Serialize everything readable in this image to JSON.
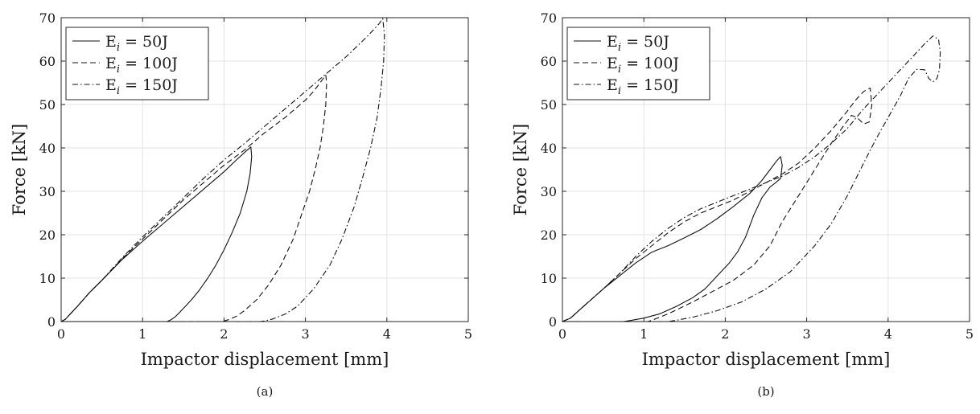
{
  "chart_data": [
    {
      "type": "line",
      "caption": "(a)",
      "xlabel": "Impactor displacement [mm]",
      "ylabel": "Force [kN]",
      "xlim": [
        0,
        5
      ],
      "ylim": [
        0,
        70
      ],
      "xticks": [
        0,
        1,
        2,
        3,
        4,
        5
      ],
      "yticks": [
        0,
        10,
        20,
        30,
        40,
        50,
        60,
        70
      ],
      "grid": true,
      "legend_position": "top-left",
      "series": [
        {
          "name": "E_i = 50J",
          "label_main": "E",
          "label_sub": "i",
          "label_rest": " = 50J",
          "dash": "solid",
          "x": [
            0,
            0.05,
            0.1,
            0.2,
            0.35,
            0.5,
            0.75,
            1.0,
            1.25,
            1.5,
            1.75,
            2.0,
            2.15,
            2.28,
            2.33,
            2.34,
            2.32,
            2.28,
            2.2,
            2.1,
            2.0,
            1.9,
            1.8,
            1.7,
            1.6,
            1.5,
            1.45,
            1.4,
            1.35,
            1.3,
            1.0,
            0.5,
            0
          ],
          "y": [
            0,
            0.5,
            1.5,
            3.5,
            6.7,
            9.5,
            14.3,
            18.5,
            22.5,
            26.5,
            30.5,
            34.5,
            37.2,
            39.4,
            40.2,
            38,
            34,
            30,
            25,
            20.5,
            16.5,
            13,
            10,
            7.3,
            5,
            3,
            2,
            1.1,
            0.4,
            0,
            0,
            0,
            0
          ]
        },
        {
          "name": "E_i = 100J",
          "label_main": "E",
          "label_sub": "i",
          "label_rest": " = 100J",
          "dash": "dashed",
          "x": [
            0,
            0.05,
            0.1,
            0.2,
            0.35,
            0.5,
            0.75,
            1.0,
            1.25,
            1.5,
            1.75,
            2.0,
            2.25,
            2.5,
            2.75,
            3.0,
            3.1,
            3.2,
            3.25,
            3.26,
            3.25,
            3.22,
            3.18,
            3.12,
            3.05,
            2.95,
            2.85,
            2.7,
            2.55,
            2.4,
            2.25,
            2.15,
            2.05,
            1.98,
            1.0,
            0.5,
            0
          ],
          "y": [
            0,
            0.5,
            1.5,
            3.5,
            6.7,
            9.5,
            14.5,
            19,
            23.5,
            28,
            32,
            36,
            39.5,
            43.5,
            47,
            51,
            53,
            55.5,
            56.8,
            55,
            50,
            45,
            40,
            35,
            30,
            24.5,
            19,
            13,
            8.5,
            5,
            2.5,
            1.2,
            0.4,
            0,
            0,
            0,
            0
          ]
        },
        {
          "name": "E_i = 150J",
          "label_main": "E",
          "label_sub": "i",
          "label_rest": " = 150J",
          "dash": "dashdot",
          "x": [
            0,
            0.05,
            0.1,
            0.2,
            0.35,
            0.5,
            0.75,
            1.0,
            1.25,
            1.5,
            1.75,
            2.0,
            2.25,
            2.5,
            2.75,
            3.0,
            3.25,
            3.5,
            3.75,
            3.9,
            3.95,
            3.97,
            3.96,
            3.93,
            3.88,
            3.8,
            3.7,
            3.6,
            3.45,
            3.3,
            3.1,
            2.9,
            2.75,
            2.6,
            2.5,
            2.45,
            1.0,
            0.5,
            0
          ],
          "y": [
            0,
            0.5,
            1.5,
            3.5,
            6.7,
            9.5,
            14.7,
            19.5,
            24,
            28.5,
            33,
            37.2,
            41,
            45,
            49,
            53,
            57,
            61,
            65.5,
            68.5,
            69.8,
            66,
            60,
            54,
            47,
            40,
            33,
            26.5,
            19,
            13,
            7.5,
            3.5,
            1.7,
            0.6,
            0.15,
            0,
            0,
            0,
            0
          ]
        }
      ]
    },
    {
      "type": "line",
      "caption": "(b)",
      "xlabel": "Impactor displacement [mm]",
      "ylabel": "Force [kN]",
      "xlim": [
        0,
        5
      ],
      "ylim": [
        0,
        70
      ],
      "xticks": [
        0,
        1,
        2,
        3,
        4,
        5
      ],
      "yticks": [
        0,
        10,
        20,
        30,
        40,
        50,
        60,
        70
      ],
      "grid": true,
      "legend_position": "top-left",
      "series": [
        {
          "name": "E_i = 50J",
          "label_main": "E",
          "label_sub": "i",
          "label_rest": " = 50J",
          "dash": "solid",
          "x": [
            0,
            0.1,
            0.2,
            0.35,
            0.5,
            0.7,
            0.9,
            1.1,
            1.3,
            1.5,
            1.7,
            1.9,
            2.1,
            2.3,
            2.45,
            2.55,
            2.63,
            2.68,
            2.7,
            2.68,
            2.62,
            2.55,
            2.45,
            2.35,
            2.25,
            2.15,
            2.05,
            1.95,
            1.85,
            1.75,
            1.6,
            1.4,
            1.2,
            1.0,
            0.85,
            0.75,
            0.5,
            0
          ],
          "y": [
            0,
            0.8,
            2.5,
            5,
            7.5,
            10.5,
            13.5,
            16,
            17.5,
            19.3,
            21.2,
            23.7,
            26.5,
            29.5,
            32.5,
            35,
            37,
            38,
            36,
            33,
            32,
            31,
            28.5,
            24.5,
            19.5,
            16,
            13.5,
            11.5,
            9.5,
            7.5,
            5.5,
            3.5,
            1.8,
            0.8,
            0.3,
            0,
            0,
            0
          ]
        },
        {
          "name": "E_i = 100J",
          "label_main": "E",
          "label_sub": "i",
          "label_rest": " = 100J",
          "dash": "dashed",
          "x": [
            0,
            0.1,
            0.2,
            0.35,
            0.5,
            0.7,
            0.9,
            1.1,
            1.3,
            1.5,
            1.7,
            1.9,
            2.1,
            2.3,
            2.5,
            2.7,
            2.9,
            3.1,
            3.3,
            3.5,
            3.6,
            3.7,
            3.78,
            3.8,
            3.77,
            3.7,
            3.62,
            3.55,
            3.45,
            3.3,
            3.1,
            2.9,
            2.7,
            2.55,
            2.35,
            2.1,
            1.9,
            1.6,
            1.3,
            1.1,
            1.05,
            0.5,
            0
          ],
          "y": [
            0,
            0.8,
            2.5,
            5,
            7.5,
            11,
            14.5,
            17.5,
            20.5,
            23,
            25,
            26.5,
            28,
            30,
            32,
            34,
            36.5,
            40,
            44,
            48.5,
            51,
            53,
            53.8,
            50,
            46,
            45.5,
            47,
            47.5,
            45,
            41,
            35,
            29,
            23,
            17.5,
            13,
            9.5,
            7.5,
            4.5,
            1.8,
            0.3,
            0,
            0,
            0
          ]
        },
        {
          "name": "E_i = 150J",
          "label_main": "E",
          "label_sub": "i",
          "label_rest": " = 150J",
          "dash": "dashdot",
          "x": [
            0,
            0.1,
            0.2,
            0.35,
            0.5,
            0.7,
            0.9,
            1.1,
            1.3,
            1.5,
            1.7,
            1.9,
            2.1,
            2.3,
            2.5,
            2.7,
            2.9,
            3.1,
            3.3,
            3.5,
            3.7,
            3.9,
            4.1,
            4.3,
            4.45,
            4.55,
            4.62,
            4.64,
            4.63,
            4.6,
            4.55,
            4.5,
            4.45,
            4.35,
            4.25,
            4.15,
            4.0,
            3.85,
            3.7,
            3.5,
            3.3,
            3.1,
            2.95,
            2.8,
            2.5,
            2.2,
            1.9,
            1.6,
            1.4,
            1.3,
            0.5,
            0
          ],
          "y": [
            0,
            0.8,
            2.5,
            5,
            7.5,
            11,
            15,
            18.5,
            21.5,
            24,
            26,
            27.5,
            29,
            30.5,
            32,
            33.5,
            35.5,
            38,
            41,
            44.5,
            49,
            53,
            57,
            61,
            64,
            65.8,
            65,
            62,
            58,
            56,
            55.2,
            56,
            58,
            58.1,
            56,
            52,
            47,
            42,
            36.5,
            29,
            22.5,
            17.5,
            14.5,
            11.5,
            7.5,
            4.5,
            2.5,
            1,
            0.3,
            0,
            0,
            0
          ]
        }
      ]
    }
  ]
}
